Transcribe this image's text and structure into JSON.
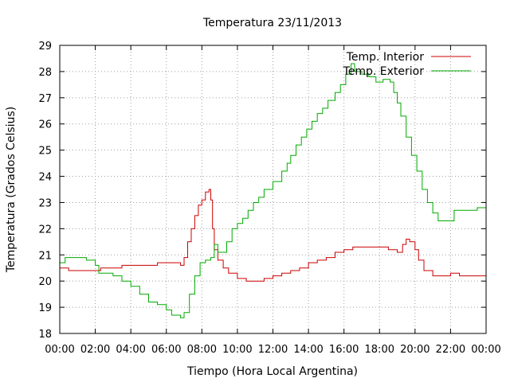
{
  "chart_data": {
    "type": "line",
    "title": "Temperatura 23/11/2013",
    "xlabel": "Tiempo (Hora Local Argentina)",
    "ylabel": "Temperatura (Grados Celsius)",
    "xlim": [
      0,
      24
    ],
    "ylim": [
      18,
      29
    ],
    "x_ticks": [
      0,
      2,
      4,
      6,
      8,
      10,
      12,
      14,
      16,
      18,
      20,
      22,
      24
    ],
    "x_tick_labels": [
      "00:00",
      "02:00",
      "04:00",
      "06:00",
      "08:00",
      "10:00",
      "12:00",
      "14:00",
      "16:00",
      "18:00",
      "20:00",
      "22:00",
      "00:00"
    ],
    "y_ticks": [
      18,
      19,
      20,
      21,
      22,
      23,
      24,
      25,
      26,
      27,
      28,
      29
    ],
    "y_tick_labels": [
      "18",
      "19",
      "20",
      "21",
      "22",
      "23",
      "24",
      "25",
      "26",
      "27",
      "28",
      "29"
    ],
    "grid": true,
    "legend_position": "top-right",
    "x_unit": "hours",
    "series": [
      {
        "name": "Temp. Interior",
        "color": "#cc0000",
        "points": [
          [
            0,
            20.5
          ],
          [
            0.5,
            20.4
          ],
          [
            1,
            20.4
          ],
          [
            2,
            20.4
          ],
          [
            2.3,
            20.5
          ],
          [
            3,
            20.5
          ],
          [
            3.5,
            20.6
          ],
          [
            4,
            20.6
          ],
          [
            5,
            20.6
          ],
          [
            5.5,
            20.7
          ],
          [
            6,
            20.7
          ],
          [
            6.5,
            20.7
          ],
          [
            6.8,
            20.6
          ],
          [
            7,
            20.9
          ],
          [
            7.2,
            21.5
          ],
          [
            7.4,
            22.0
          ],
          [
            7.6,
            22.5
          ],
          [
            7.8,
            22.9
          ],
          [
            8.0,
            23.1
          ],
          [
            8.2,
            23.4
          ],
          [
            8.4,
            23.5
          ],
          [
            8.5,
            23.1
          ],
          [
            8.6,
            22.0
          ],
          [
            8.7,
            21.2
          ],
          [
            8.9,
            20.8
          ],
          [
            9.2,
            20.5
          ],
          [
            9.5,
            20.3
          ],
          [
            10,
            20.1
          ],
          [
            10.5,
            20.0
          ],
          [
            11,
            20.0
          ],
          [
            11.5,
            20.1
          ],
          [
            12,
            20.2
          ],
          [
            12.5,
            20.3
          ],
          [
            13,
            20.4
          ],
          [
            13.5,
            20.5
          ],
          [
            14,
            20.7
          ],
          [
            14.5,
            20.8
          ],
          [
            15,
            20.9
          ],
          [
            15.5,
            21.1
          ],
          [
            16,
            21.2
          ],
          [
            16.5,
            21.3
          ],
          [
            17,
            21.3
          ],
          [
            17.5,
            21.3
          ],
          [
            18,
            21.3
          ],
          [
            18.5,
            21.2
          ],
          [
            19,
            21.1
          ],
          [
            19.3,
            21.4
          ],
          [
            19.5,
            21.6
          ],
          [
            19.7,
            21.5
          ],
          [
            20,
            21.2
          ],
          [
            20.2,
            20.8
          ],
          [
            20.5,
            20.4
          ],
          [
            21,
            20.2
          ],
          [
            21.5,
            20.2
          ],
          [
            22,
            20.3
          ],
          [
            22.5,
            20.2
          ],
          [
            23,
            20.2
          ],
          [
            23.5,
            20.2
          ],
          [
            24,
            20.2
          ]
        ]
      },
      {
        "name": "Temp. Exterior",
        "color": "#00aa00",
        "points": [
          [
            0,
            20.7
          ],
          [
            0.3,
            20.9
          ],
          [
            1,
            20.9
          ],
          [
            1.5,
            20.8
          ],
          [
            2,
            20.6
          ],
          [
            2.2,
            20.3
          ],
          [
            3,
            20.2
          ],
          [
            3.5,
            20.0
          ],
          [
            4,
            19.8
          ],
          [
            4.5,
            19.5
          ],
          [
            5,
            19.2
          ],
          [
            5.5,
            19.1
          ],
          [
            6,
            18.9
          ],
          [
            6.3,
            18.7
          ],
          [
            6.8,
            18.6
          ],
          [
            7,
            18.8
          ],
          [
            7.3,
            19.5
          ],
          [
            7.6,
            20.2
          ],
          [
            7.9,
            20.7
          ],
          [
            8.2,
            20.8
          ],
          [
            8.5,
            20.9
          ],
          [
            8.7,
            21.4
          ],
          [
            8.9,
            21.1
          ],
          [
            9.1,
            21.1
          ],
          [
            9.4,
            21.5
          ],
          [
            9.7,
            22.0
          ],
          [
            10,
            22.2
          ],
          [
            10.3,
            22.4
          ],
          [
            10.6,
            22.7
          ],
          [
            10.9,
            23.0
          ],
          [
            11.2,
            23.2
          ],
          [
            11.5,
            23.5
          ],
          [
            12,
            23.8
          ],
          [
            12.5,
            24.2
          ],
          [
            12.8,
            24.5
          ],
          [
            13,
            24.8
          ],
          [
            13.3,
            25.2
          ],
          [
            13.6,
            25.5
          ],
          [
            13.9,
            25.8
          ],
          [
            14.2,
            26.1
          ],
          [
            14.5,
            26.4
          ],
          [
            14.8,
            26.6
          ],
          [
            15.1,
            26.9
          ],
          [
            15.5,
            27.2
          ],
          [
            15.8,
            27.5
          ],
          [
            16.1,
            27.9
          ],
          [
            16.4,
            28.3
          ],
          [
            16.6,
            28.0
          ],
          [
            17.0,
            27.9
          ],
          [
            17.4,
            27.8
          ],
          [
            17.8,
            27.6
          ],
          [
            18.2,
            27.7
          ],
          [
            18.6,
            27.6
          ],
          [
            18.8,
            27.2
          ],
          [
            19.0,
            26.8
          ],
          [
            19.2,
            26.3
          ],
          [
            19.5,
            25.5
          ],
          [
            19.8,
            24.8
          ],
          [
            20.1,
            24.2
          ],
          [
            20.4,
            23.5
          ],
          [
            20.7,
            23.0
          ],
          [
            21.0,
            22.6
          ],
          [
            21.3,
            22.3
          ],
          [
            21.6,
            22.3
          ],
          [
            22.0,
            22.3
          ],
          [
            22.2,
            22.7
          ],
          [
            22.5,
            22.7
          ],
          [
            23.0,
            22.7
          ],
          [
            23.5,
            22.8
          ],
          [
            24.0,
            22.8
          ]
        ]
      }
    ]
  }
}
